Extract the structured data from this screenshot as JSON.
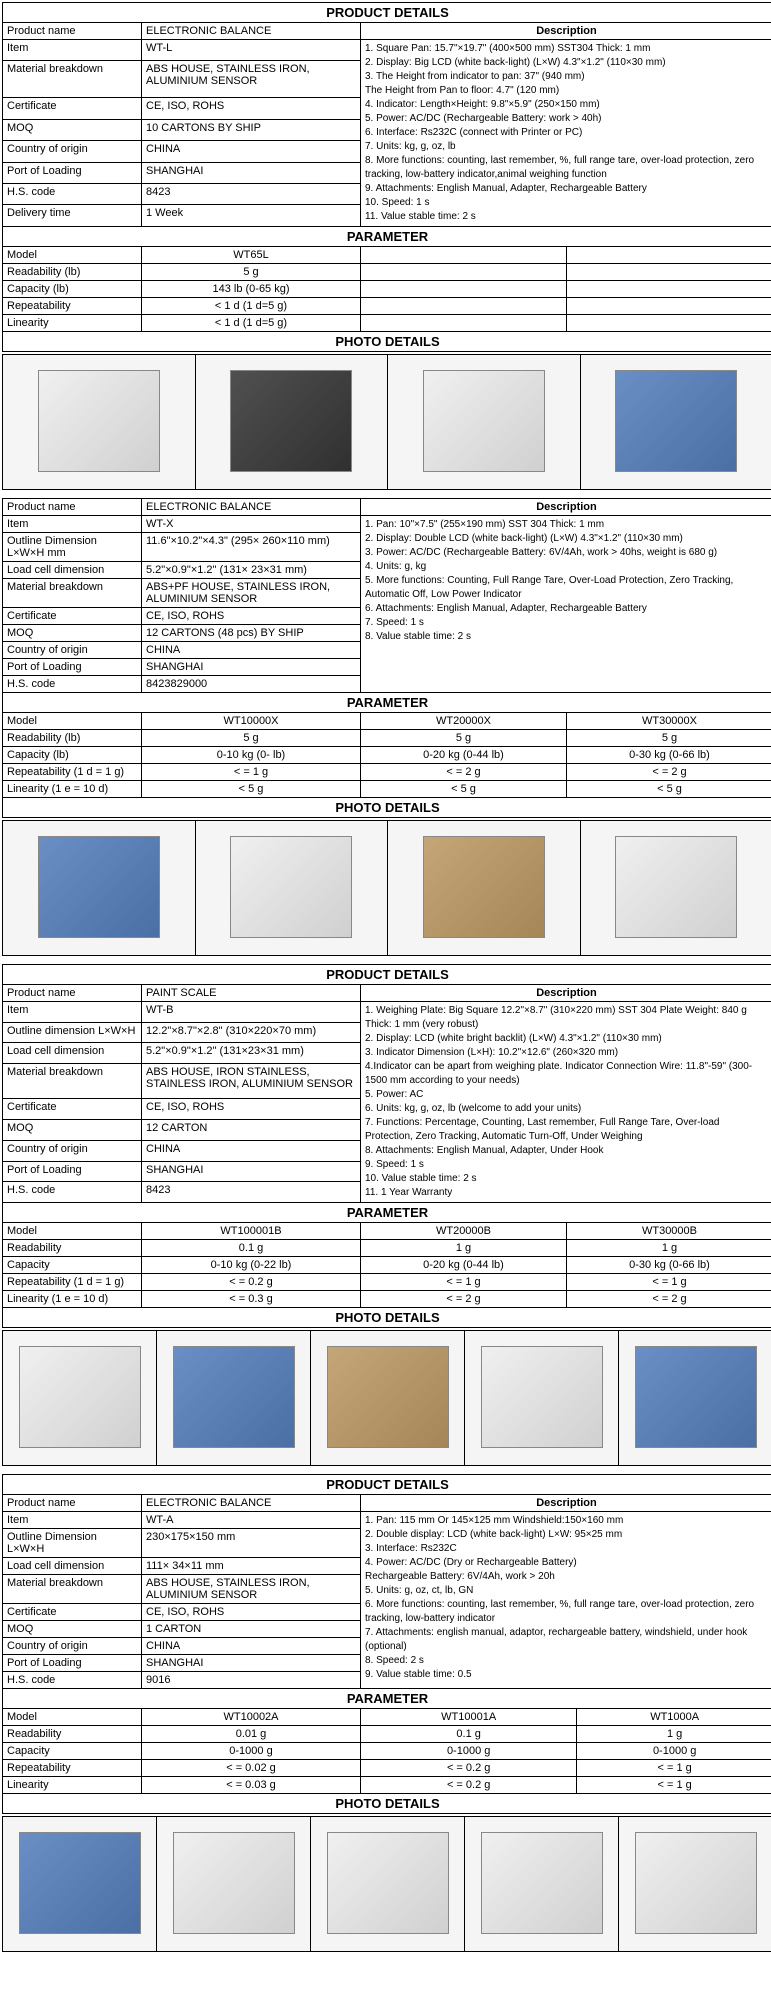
{
  "products": [
    {
      "header": "PRODUCT DETAILS",
      "details": [
        {
          "label": "Product name",
          "value": "ELECTRONIC BALANCE"
        },
        {
          "label": "Item",
          "value": "WT-L"
        },
        {
          "label": "Material breakdown",
          "value": "ABS HOUSE, STAINLESS IRON, ALUMINIUM SENSOR"
        },
        {
          "label": "Certificate",
          "value": "CE, ISO, ROHS"
        },
        {
          "label": "MOQ",
          "value": "10 CARTONS BY SHIP"
        },
        {
          "label": "Country of origin",
          "value": "CHINA"
        },
        {
          "label": "Port of Loading",
          "value": "SHANGHAI"
        },
        {
          "label": "H.S. code",
          "value": "8423"
        },
        {
          "label": "Delivery time",
          "value": "1 Week"
        }
      ],
      "desc_header": "Description",
      "description": "1. Square Pan: 15.7\"×19.7\" (400×500 mm)  SST304 Thick: 1 mm\n2. Display: Big LCD (white back-light) (L×W) 4.3\"×1.2\" (110×30 mm)\n3. The Height from indicator to pan:  37\" (940 mm)\nThe Height from Pan to floor: 4.7\" (120 mm)\n4. Indicator: Length×Height: 9.8\"×5.9\" (250×150 mm)\n5. Power: AC/DC (Rechargeable Battery: work > 40h)\n6. Interface: Rs232C (connect with Printer or PC)\n7. Units: kg, g, oz, lb\n8. More functions: counting, last remember, %, full range tare, over-load protection, zero tracking, low-battery indicator,animal weighing function\n9. Attachments: English Manual, Adapter, Rechargeable Battery\n10. Speed: 1 s\n11. Value stable time: 2 s",
      "param_header": "PARAMETER",
      "param_rows": [
        {
          "label": "Model",
          "values": [
            "WT65L",
            "",
            ""
          ]
        },
        {
          "label": "Readability (lb)",
          "values": [
            "5 g",
            "",
            ""
          ]
        },
        {
          "label": "Capacity (lb)",
          "values": [
            "143 lb (0-65 kg)",
            "",
            ""
          ]
        },
        {
          "label": "Repeatability",
          "values": [
            "< 1 d (1 d=5 g)",
            "",
            ""
          ]
        },
        {
          "label": "Linearity",
          "values": [
            "< 1 d (1 d=5 g)",
            "",
            ""
          ]
        }
      ],
      "photo_header": "PHOTO DETAILS",
      "photo_classes": [
        "ph-white",
        "ph-dark",
        "ph-white",
        "ph-blue"
      ]
    },
    {
      "header": "",
      "details": [
        {
          "label": "Product name",
          "value": "ELECTRONIC BALANCE"
        },
        {
          "label": "Item",
          "value": "WT-X"
        },
        {
          "label": "Outline Dimension L×W×H mm",
          "value": "11.6\"×10.2\"×4.3\" (295× 260×110 mm)"
        },
        {
          "label": "Load cell dimension",
          "value": "5.2\"×0.9\"×1.2\" (131× 23×31 mm)"
        },
        {
          "label": "Material breakdown",
          "value": "ABS+PF HOUSE, STAINLESS IRON, ALUMINIUM SENSOR"
        },
        {
          "label": "Certificate",
          "value": "CE, ISO, ROHS"
        },
        {
          "label": "MOQ",
          "value": "12 CARTONS (48 pcs) BY SHIP"
        },
        {
          "label": "Country of origin",
          "value": "CHINA"
        },
        {
          "label": "Port of Loading",
          "value": "SHANGHAI"
        },
        {
          "label": "H.S. code",
          "value": "8423829000"
        }
      ],
      "desc_header": "Description",
      "description": "1. Pan: 10\"×7.5\" (255×190 mm) SST 304 Thick: 1 mm\n2. Display: Double LCD (white back-light) (L×W) 4.3\"×1.2\" (110×30 mm)\n3. Power: AC/DC (Rechargeable Battery: 6V/4Ah, work > 40hs, weight is 680 g)\n4. Units: g, kg\n5. More functions: Counting, Full Range Tare, Over-Load Protection, Zero Tracking, Automatic Off, Low Power Indicator\n6. Attachments: English Manual, Adapter, Rechargeable Battery\n7. Speed: 1 s\n8. Value stable time: 2 s",
      "param_header": "PARAMETER",
      "param_rows": [
        {
          "label": "Model",
          "values": [
            "WT10000X",
            "WT20000X",
            "WT30000X"
          ]
        },
        {
          "label": "Readability (lb)",
          "values": [
            "5 g",
            "5 g",
            "5 g"
          ]
        },
        {
          "label": "Capacity (lb)",
          "values": [
            "0-10 kg (0- lb)",
            "0-20 kg (0-44 lb)",
            "0-30 kg (0-66 lb)"
          ]
        },
        {
          "label": "Repeatability (1 d = 1 g)",
          "values": [
            "< = 1 g",
            "< = 2 g",
            "< = 2 g"
          ]
        },
        {
          "label": "Linearity (1 e = 10 d)",
          "values": [
            "< 5 g",
            "< 5 g",
            "< 5 g"
          ]
        }
      ],
      "photo_header": "PHOTO DETAILS",
      "photo_classes": [
        "ph-blue",
        "ph-white",
        "ph-brown",
        "ph-white"
      ]
    },
    {
      "header": "PRODUCT DETAILS",
      "details": [
        {
          "label": "Product name",
          "value": "PAINT SCALE"
        },
        {
          "label": "Item",
          "value": "WT-B"
        },
        {
          "label": "Outline dimension L×W×H",
          "value": "12.2\"×8.7\"×2.8\" (310×220×70 mm)"
        },
        {
          "label": "Load cell dimension",
          "value": "5.2\"×0.9\"×1.2\" (131×23×31 mm)"
        },
        {
          "label": "Material breakdown",
          "value": "ABS HOUSE, IRON STAINLESS, STAINLESS IRON, ALUMINIUM SENSOR"
        },
        {
          "label": "Certificate",
          "value": "CE, ISO, ROHS"
        },
        {
          "label": "MOQ",
          "value": "12 CARTON"
        },
        {
          "label": "Country of origin",
          "value": "CHINA"
        },
        {
          "label": "Port of Loading",
          "value": "SHANGHAI"
        },
        {
          "label": "H.S. code",
          "value": "8423"
        }
      ],
      "desc_header": "Description",
      "description": "1. Weighing Plate: Big Square 12.2\"×8.7\" (310×220 mm) SST 304 Plate Weight: 840 g   Thick: 1 mm (very robust)\n2. Display: LCD (white bright backlit) (L×W) 4.3\"×1.2\" (110×30 mm)\n3. Indicator Dimension (L×H):  10.2\"×12.6\" (260×320 mm)\n4.Indicator can be apart from weighing plate. Indicator Connection Wire: 11.8\"-59\" (300-1500 mm according to your needs)\n5. Power: AC\n6. Units:  kg, g, oz, lb (welcome to add your units)\n7. Functions: Percentage, Counting, Last remember, Full Range Tare, Over-load Protection, Zero Tracking, Automatic Turn-Off, Under Weighing\n8. Attachments: English Manual, Adapter, Under Hook\n9. Speed: 1 s\n10. Value stable time: 2 s\n11. 1 Year Warranty",
      "param_header": "PARAMETER",
      "param_rows": [
        {
          "label": "Model",
          "values": [
            "WT100001B",
            "WT20000B",
            "WT30000B"
          ]
        },
        {
          "label": "Readability",
          "values": [
            "0.1 g",
            "1 g",
            "1 g"
          ]
        },
        {
          "label": "Capacity",
          "values": [
            "0-10 kg (0-22 lb)",
            "0-20 kg (0-44 lb)",
            "0-30 kg (0-66 lb)"
          ]
        },
        {
          "label": "Repeatability (1 d = 1 g)",
          "values": [
            "< = 0.2 g",
            "< = 1 g",
            "< = 1 g"
          ]
        },
        {
          "label": "Linearity (1 e = 10 d)",
          "values": [
            "< = 0.3 g",
            "< = 2 g",
            "< = 2 g"
          ]
        }
      ],
      "photo_header": "PHOTO DETAILS",
      "photo_classes": [
        "ph-white",
        "ph-blue",
        "ph-brown",
        "ph-white",
        "ph-blue"
      ],
      "photo_count": 5
    },
    {
      "header": "PRODUCT DETAILS",
      "details": [
        {
          "label": "Product name",
          "value": "ELECTRONIC BALANCE"
        },
        {
          "label": "Item",
          "value": "WT-A"
        },
        {
          "label": "Outline Dimension L×W×H",
          "value": "230×175×150 mm"
        },
        {
          "label": "Load cell dimension",
          "value": "111× 34×11 mm"
        },
        {
          "label": "Material breakdown",
          "value": "ABS HOUSE, STAINLESS IRON, ALUMINIUM SENSOR"
        },
        {
          "label": "Certificate",
          "value": "CE, ISO, ROHS"
        },
        {
          "label": "MOQ",
          "value": "1 CARTON"
        },
        {
          "label": "Country of origin",
          "value": "CHINA"
        },
        {
          "label": "Port of Loading",
          "value": "SHANGHAI"
        },
        {
          "label": "H.S. code",
          "value": "9016"
        }
      ],
      "desc_header": "Description",
      "description": "1. Pan: 115 mm Or 145×125 mm    Windshield:150×160 mm\n2. Double display:  LCD (white back-light)   L×W: 95×25 mm\n3. Interface: Rs232C\n4. Power: AC/DC (Dry or Rechargeable Battery)\n   Rechargeable Battery: 6V/4Ah, work > 20h\n5. Units:  g, oz, ct, lb, GN\n6. More functions: counting, last remember, %, full range tare, over-load protection, zero tracking, low-battery indicator\n7. Attachments: english manual, adaptor, rechargeable battery, windshield, under hook (optional)\n8. Speed: 2 s\n9. Value stable time: 0.5",
      "param_header": "PARAMETER",
      "param_rows": [
        {
          "label": "Model",
          "values": [
            "WT10002A",
            "WT10001A",
            "WT1000A"
          ]
        },
        {
          "label": "Readability",
          "values": [
            "0.01 g",
            "0.1 g",
            "1 g"
          ]
        },
        {
          "label": "Capacity",
          "values": [
            "0-1000 g",
            "0-1000 g",
            "0-1000 g"
          ]
        },
        {
          "label": "Repeatability",
          "values": [
            "< = 0.02 g",
            "< = 0.2 g",
            "< = 1 g"
          ]
        },
        {
          "label": "Linearity",
          "values": [
            "< = 0.03 g",
            "< = 0.2 g",
            "< = 1 g"
          ]
        }
      ],
      "photo_header": "PHOTO DETAILS",
      "photo_classes": [
        "ph-blue",
        "ph-white",
        "ph-white",
        "ph-white",
        "ph-white"
      ],
      "photo_count": 5
    }
  ]
}
